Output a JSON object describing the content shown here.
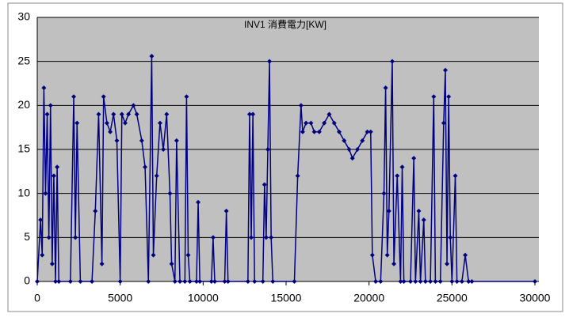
{
  "chart_data": {
    "type": "line",
    "title": "INV1 消費電力[KW]",
    "x": [
      0,
      200,
      300,
      400,
      500,
      600,
      700,
      800,
      900,
      1000,
      1100,
      1200,
      1300,
      2000,
      2200,
      2300,
      2400,
      2600,
      3300,
      3500,
      3700,
      3900,
      4000,
      4200,
      4400,
      4600,
      4800,
      5000,
      5100,
      5300,
      5500,
      5800,
      6000,
      6300,
      6500,
      6700,
      6900,
      7000,
      7200,
      7400,
      7600,
      7800,
      8000,
      8100,
      8300,
      8400,
      8600,
      8900,
      9000,
      9100,
      9200,
      9600,
      9700,
      9800,
      10500,
      10600,
      10700,
      11300,
      11400,
      11500,
      12700,
      12800,
      12900,
      13000,
      13100,
      13600,
      13700,
      13800,
      13900,
      14000,
      14100,
      14200,
      15500,
      15700,
      15900,
      16000,
      16200,
      16500,
      16700,
      17000,
      17300,
      17600,
      17900,
      18200,
      18500,
      18800,
      19000,
      19300,
      19600,
      19900,
      20100,
      20200,
      20400,
      20700,
      20900,
      21000,
      21100,
      21200,
      21400,
      21500,
      21700,
      21900,
      22000,
      22100,
      22500,
      22700,
      22800,
      23000,
      23100,
      23300,
      23400,
      23700,
      23900,
      24000,
      24300,
      24500,
      24600,
      24700,
      24800,
      24900,
      25000,
      25200,
      25300,
      25600,
      25800,
      26000,
      26200,
      30000
    ],
    "series": [
      {
        "color": "#000080",
        "values": [
          0,
          7,
          3,
          22,
          10,
          19,
          5,
          20,
          2,
          12,
          0,
          13,
          0,
          0,
          21,
          5,
          18,
          0,
          0,
          8,
          19,
          2,
          21,
          18,
          17,
          19,
          16,
          0,
          19,
          18,
          19,
          20,
          19,
          16,
          13,
          0,
          25.6,
          3,
          12,
          18,
          15,
          19,
          10,
          2,
          0,
          16,
          0,
          0,
          21,
          3,
          0,
          0,
          9,
          0,
          0,
          5,
          0,
          0,
          8,
          0,
          0,
          19,
          5,
          19,
          0,
          0,
          11,
          5,
          15,
          25,
          5,
          0,
          0,
          12,
          20,
          17,
          18,
          18,
          17,
          17,
          18,
          19,
          18,
          17,
          16,
          15,
          14,
          15,
          16,
          17,
          17,
          3,
          0,
          0,
          10,
          22,
          3,
          8,
          25,
          2,
          12,
          0,
          13,
          0,
          0,
          14,
          0,
          8,
          0,
          7,
          0,
          0,
          21,
          0,
          0,
          18,
          24,
          2,
          21,
          5,
          0,
          12,
          0,
          0,
          3,
          0,
          0,
          0
        ]
      }
    ],
    "xlim": [
      0,
      30000
    ],
    "ylim": [
      0,
      30
    ],
    "xticks": [
      0,
      5000,
      10000,
      15000,
      20000,
      25000,
      30000
    ],
    "yticks": [
      0,
      5,
      10,
      15,
      20,
      25,
      30
    ],
    "grid": true
  }
}
